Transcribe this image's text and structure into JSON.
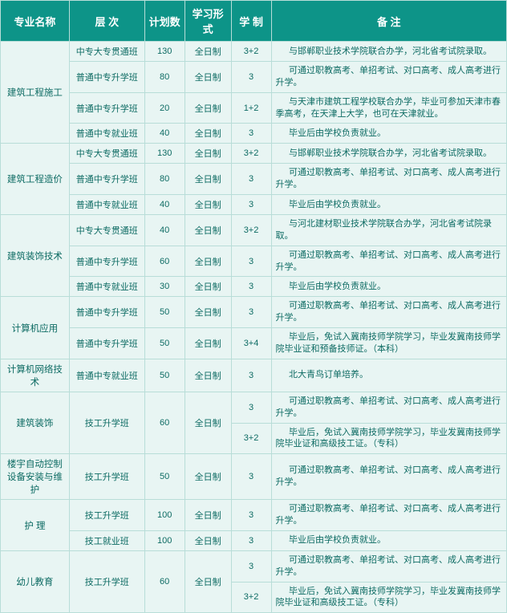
{
  "columns": [
    "专业名称",
    "层 次",
    "计划数",
    "学习形式",
    "学 制",
    "备  注"
  ],
  "majors": [
    {
      "name": "建筑工程施工",
      "rows": [
        {
          "level": "中专大专贯通班",
          "plan": "130",
          "form": "全日制",
          "sys": "3+2",
          "remark": "与邯郸职业技术学院联合办学，河北省考试院录取。"
        },
        {
          "level": "普通中专升学班",
          "plan": "80",
          "form": "全日制",
          "sys": "3",
          "remark": "可通过职教高考、单招考试、对口高考、成人高考进行升学。"
        },
        {
          "level": "普通中专升学班",
          "plan": "20",
          "form": "全日制",
          "sys": "1+2",
          "remark": "与天津市建筑工程学校联合办学，毕业可参加天津市春季高考，在天津上大学，也可在天津就业。"
        },
        {
          "level": "普通中专就业班",
          "plan": "40",
          "form": "全日制",
          "sys": "3",
          "remark": "毕业后由学校负责就业。"
        }
      ]
    },
    {
      "name": "建筑工程造价",
      "rows": [
        {
          "level": "中专大专贯通班",
          "plan": "130",
          "form": "全日制",
          "sys": "3+2",
          "remark": "与邯郸职业技术学院联合办学，河北省考试院录取。"
        },
        {
          "level": "普通中专升学班",
          "plan": "80",
          "form": "全日制",
          "sys": "3",
          "remark": "可通过职教高考、单招考试、对口高考、成人高考进行升学。"
        },
        {
          "level": "普通中专就业班",
          "plan": "40",
          "form": "全日制",
          "sys": "3",
          "remark": "毕业后由学校负责就业。"
        }
      ]
    },
    {
      "name": "建筑装饰技术",
      "rows": [
        {
          "level": "中专大专贯通班",
          "plan": "40",
          "form": "全日制",
          "sys": "3+2",
          "remark": "与河北建材职业技术学院联合办学，河北省考试院录取。"
        },
        {
          "level": "普通中专升学班",
          "plan": "60",
          "form": "全日制",
          "sys": "3",
          "remark": "可通过职教高考、单招考试、对口高考、成人高考进行升学。"
        },
        {
          "level": "普通中专就业班",
          "plan": "30",
          "form": "全日制",
          "sys": "3",
          "remark": "毕业后由学校负责就业。"
        }
      ]
    },
    {
      "name": "计算机应用",
      "rows": [
        {
          "level": "普通中专升学班",
          "plan": "50",
          "form": "全日制",
          "sys": "3",
          "remark": "可通过职教高考、单招考试、对口高考、成人高考进行升学。"
        },
        {
          "level": "普通中专升学班",
          "plan": "50",
          "form": "全日制",
          "sys": "3+4",
          "remark": "毕业后，免试入冀南技师学院学习，毕业发冀南技师学院毕业证和预备技师证。（本科）"
        }
      ]
    },
    {
      "name": "计算机网络技术",
      "rows": [
        {
          "level": "普通中专就业班",
          "plan": "50",
          "form": "全日制",
          "sys": "3",
          "remark": "北大青鸟订单培养。"
        }
      ]
    },
    {
      "name": "建筑装饰",
      "rows": [
        {
          "level": "技工升学班",
          "plan": "60",
          "form": "全日制",
          "sub": [
            {
              "sys": "3",
              "remark": "可通过职教高考、单招考试、对口高考、成人高考进行升学。"
            },
            {
              "sys": "3+2",
              "remark": "毕业后，免试入冀南技师学院学习，毕业发冀南技师学院毕业证和高级技工证。（专科）"
            }
          ]
        }
      ]
    },
    {
      "name": "楼宇自动控制设备安装与维护",
      "rows": [
        {
          "level": "技工升学班",
          "plan": "50",
          "form": "全日制",
          "sys": "3",
          "remark": "可通过职教高考、单招考试、对口高考、成人高考进行升学。"
        }
      ]
    },
    {
      "name": "护 理",
      "rows": [
        {
          "level": "技工升学班",
          "plan": "100",
          "form": "全日制",
          "sys": "3",
          "remark": "可通过职教高考、单招考试、对口高考、成人高考进行升学。"
        },
        {
          "level": "技工就业班",
          "plan": "100",
          "form": "全日制",
          "sys": "3",
          "remark": "毕业后由学校负责就业。"
        }
      ]
    },
    {
      "name": "幼儿教育",
      "rows": [
        {
          "level": "技工升学班",
          "plan": "60",
          "form": "全日制",
          "sub": [
            {
              "sys": "3",
              "remark": "可通过职教高考、单招考试、对口高考、成人高考进行升学。"
            },
            {
              "sys": "3+2",
              "remark": "毕业后，免试入冀南技师学院学习，毕业发冀南技师学院毕业证和高级技工证。（专科）"
            }
          ]
        }
      ]
    }
  ]
}
